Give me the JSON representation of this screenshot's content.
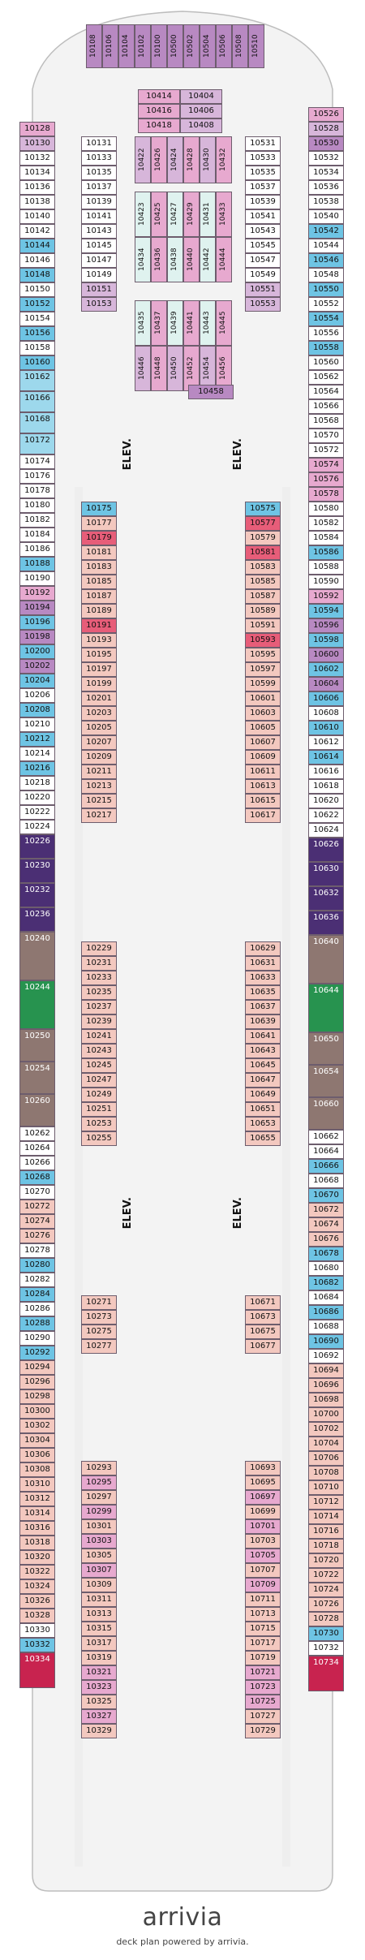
{
  "top_row": [
    "10108",
    "10106",
    "10104",
    "10102",
    "10100",
    "10500",
    "10502",
    "10504",
    "10506",
    "10508",
    "10510"
  ],
  "fwd_center_left": [
    "10414",
    "10416",
    "10418"
  ],
  "fwd_center_right": [
    "10404",
    "10406",
    "10408"
  ],
  "fwd_vertical_a": [
    "10422",
    "10426",
    "10424",
    "10428",
    "10430",
    "10432"
  ],
  "fwd_vertical_b": [
    "10423",
    "10425",
    "10427",
    "10429",
    "10431",
    "10433"
  ],
  "fwd_vertical_c": [
    "10434",
    "10436",
    "10438",
    "10440",
    "10442",
    "10444"
  ],
  "fwd_vertical_d": [
    "10435",
    "10437",
    "10439",
    "10441",
    "10443",
    "10445"
  ],
  "fwd_vertical_e": [
    "10446",
    "10448",
    "10450",
    "10452",
    "10454",
    "10456"
  ],
  "cabin_10458": "10458",
  "left_outer": [
    "10128",
    "10130",
    "10132",
    "10134",
    "10136",
    "10138",
    "10140",
    "10142",
    "10144",
    "10146",
    "10148",
    "10150",
    "10152",
    "10154",
    "10156",
    "10158",
    "10160",
    "10162",
    "10166",
    "10168",
    "10172",
    "10174",
    "10176",
    "10178",
    "10180",
    "10182",
    "10184",
    "10186",
    "10188",
    "10190",
    "10192",
    "10194",
    "10196",
    "10198",
    "10200",
    "10202",
    "10204",
    "10206",
    "10208",
    "10210",
    "10212",
    "10214",
    "10216",
    "10218",
    "10220",
    "10222",
    "10224",
    "10226",
    "10230",
    "10232",
    "10236",
    "10240",
    "10244",
    "10250",
    "10254",
    "10260",
    "10262",
    "10264",
    "10266",
    "10268",
    "10270",
    "10272",
    "10274",
    "10276",
    "10278",
    "10280",
    "10282",
    "10284",
    "10286",
    "10288",
    "10290",
    "10292",
    "10294",
    "10296",
    "10298",
    "10300",
    "10302",
    "10304",
    "10306",
    "10308",
    "10310",
    "10312",
    "10314",
    "10316",
    "10318",
    "10320",
    "10322",
    "10324",
    "10326",
    "10328",
    "10330",
    "10332",
    "10334"
  ],
  "left_inner_fwd": [
    "10131",
    "10133",
    "10135",
    "10137",
    "10139",
    "10141",
    "10143",
    "10145",
    "10147",
    "10149",
    "10151",
    "10153"
  ],
  "left_inner_mid": [
    "10175",
    "10177",
    "10179",
    "10181",
    "10183",
    "10185",
    "10187",
    "10189",
    "10191",
    "10193",
    "10195",
    "10197",
    "10199",
    "10201",
    "10203",
    "10205",
    "10207",
    "10209",
    "10211",
    "10213",
    "10215",
    "10217"
  ],
  "left_inner_mid2": [
    "10229",
    "10231",
    "10233",
    "10235",
    "10237",
    "10239",
    "10241",
    "10243",
    "10245",
    "10247",
    "10249",
    "10251",
    "10253",
    "10255"
  ],
  "left_inner_aft1": [
    "10271",
    "10273",
    "10275",
    "10277"
  ],
  "left_inner_aft2": [
    "10293",
    "10295",
    "10297",
    "10299",
    "10301",
    "10303",
    "10305",
    "10307",
    "10309",
    "10311",
    "10313",
    "10315",
    "10317",
    "10319",
    "10321",
    "10323",
    "10325",
    "10327",
    "10329"
  ],
  "right_outer": [
    "10526",
    "10528",
    "10530",
    "10532",
    "10534",
    "10536",
    "10538",
    "10540",
    "10542",
    "10544",
    "10546",
    "10548",
    "10550",
    "10552",
    "10554",
    "10556",
    "10558",
    "10560",
    "10562",
    "10564",
    "10566",
    "10568",
    "10570",
    "10572",
    "10574",
    "10576",
    "10578",
    "10580",
    "10582",
    "10584",
    "10586",
    "10588",
    "10590",
    "10592",
    "10594",
    "10596",
    "10598",
    "10600",
    "10602",
    "10604",
    "10606",
    "10608",
    "10610",
    "10612",
    "10614",
    "10616",
    "10618",
    "10620",
    "10622",
    "10624",
    "10626",
    "10630",
    "10632",
    "10636",
    "10640",
    "10644",
    "10650",
    "10654",
    "10660",
    "10662",
    "10664",
    "10666",
    "10668",
    "10670",
    "10672",
    "10674",
    "10676",
    "10678",
    "10680",
    "10682",
    "10684",
    "10686",
    "10688",
    "10690",
    "10692",
    "10694",
    "10696",
    "10698",
    "10700",
    "10702",
    "10704",
    "10706",
    "10708",
    "10710",
    "10712",
    "10714",
    "10716",
    "10718",
    "10720",
    "10722",
    "10724",
    "10726",
    "10728",
    "10730",
    "10732",
    "10734"
  ],
  "right_inner_fwd": [
    "10531",
    "10533",
    "10535",
    "10537",
    "10539",
    "10541",
    "10543",
    "10545",
    "10547",
    "10549",
    "10551",
    "10553"
  ],
  "right_inner_mid": [
    "10575",
    "10577",
    "10579",
    "10581",
    "10583",
    "10585",
    "10587",
    "10589",
    "10591",
    "10593",
    "10595",
    "10597",
    "10599",
    "10601",
    "10603",
    "10605",
    "10607",
    "10609",
    "10611",
    "10613",
    "10615",
    "10617"
  ],
  "right_inner_mid2": [
    "10629",
    "10631",
    "10633",
    "10635",
    "10637",
    "10639",
    "10641",
    "10643",
    "10645",
    "10647",
    "10649",
    "10651",
    "10653",
    "10655"
  ],
  "right_inner_aft1": [
    "10671",
    "10673",
    "10675",
    "10677"
  ],
  "right_inner_aft2": [
    "10693",
    "10695",
    "10697",
    "10699",
    "10701",
    "10703",
    "10705",
    "10707",
    "10709",
    "10711",
    "10713",
    "10715",
    "10717",
    "10719",
    "10721",
    "10723",
    "10725",
    "10727",
    "10729"
  ],
  "elev_label": "ELEV.",
  "logo": "arrivia",
  "footer": "deck plan powered by arrivia."
}
